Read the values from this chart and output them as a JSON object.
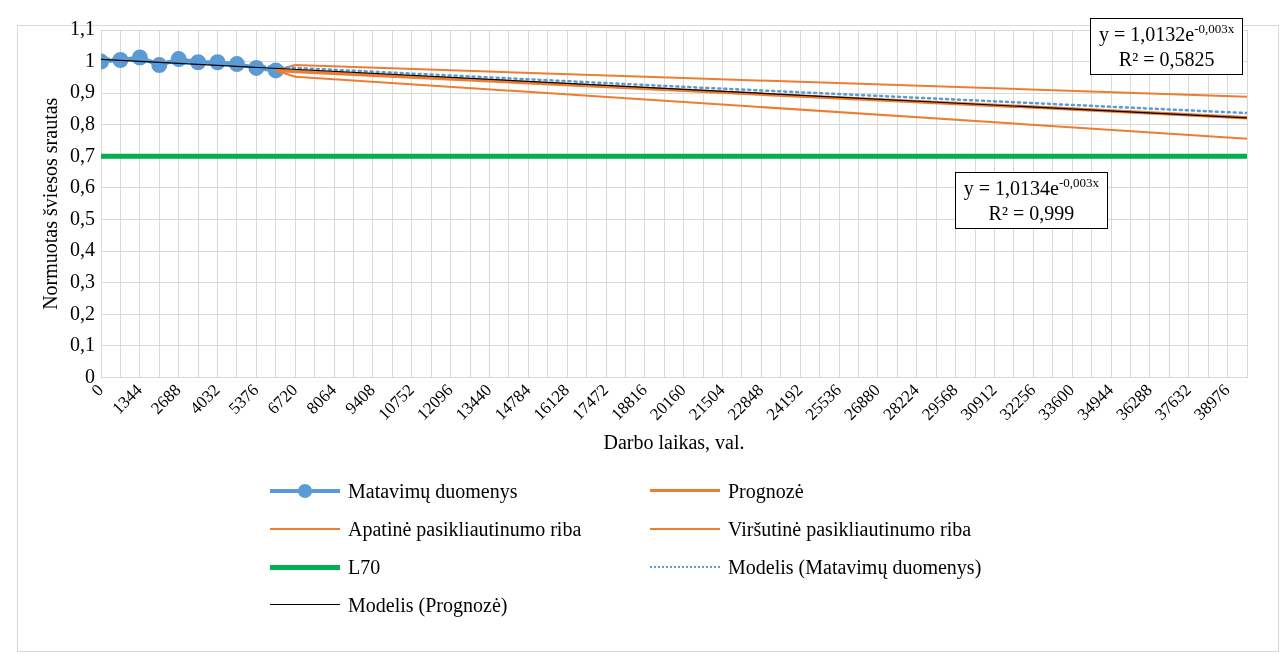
{
  "chart_data": {
    "type": "line",
    "xlabel": "Darbo laikas, val.",
    "ylabel": "Normuotas šviesos srautas",
    "xlim": [
      0,
      39648
    ],
    "xticks": [
      0,
      {
        "value": 672,
        "label": null
      },
      1344,
      {
        "value": 2016,
        "label": null
      },
      2688,
      {
        "value": 3360,
        "label": null
      },
      4032,
      {
        "value": 4704,
        "label": null
      },
      5376,
      {
        "value": 6048,
        "label": null
      },
      6720,
      {
        "value": 7392,
        "label": null
      },
      8064,
      {
        "value": 8736,
        "label": null
      },
      9408,
      {
        "value": 10080,
        "label": null
      },
      10752,
      {
        "value": 11424,
        "label": null
      },
      12096,
      {
        "value": 12768,
        "label": null
      },
      13440,
      {
        "value": 14112,
        "label": null
      },
      14784,
      {
        "value": 15456,
        "label": null
      },
      16128,
      {
        "value": 16800,
        "label": null
      },
      17472,
      {
        "value": 18144,
        "label": null
      },
      18816,
      {
        "value": 19488,
        "label": null
      },
      20160,
      {
        "value": 20832,
        "label": null
      },
      21504,
      {
        "value": 22176,
        "label": null
      },
      22848,
      {
        "value": 23520,
        "label": null
      },
      24192,
      {
        "value": 24864,
        "label": null
      },
      25536,
      {
        "value": 26208,
        "label": null
      },
      26880,
      {
        "value": 27552,
        "label": null
      },
      28224,
      {
        "value": 28896,
        "label": null
      },
      29568,
      {
        "value": 30240,
        "label": null
      },
      30912,
      {
        "value": 31584,
        "label": null
      },
      32256,
      {
        "value": 32928,
        "label": null
      },
      33600,
      {
        "value": 34272,
        "label": null
      },
      34944,
      {
        "value": 35616,
        "label": null
      },
      36288,
      {
        "value": 36960,
        "label": null
      },
      37632,
      {
        "value": 38304,
        "label": null
      },
      38976,
      {
        "value": 39648,
        "label": null
      }
    ],
    "ylim": [
      0,
      1.1
    ],
    "yticks": [
      0,
      {
        "value": 0.1,
        "label": "0,1"
      },
      {
        "value": 0.2,
        "label": "0,2"
      },
      {
        "value": 0.3,
        "label": "0,3"
      },
      {
        "value": 0.4,
        "label": "0,4"
      },
      {
        "value": 0.5,
        "label": "0,5"
      },
      {
        "value": 0.6,
        "label": "0,6"
      },
      {
        "value": 0.7,
        "label": "0,7"
      },
      {
        "value": 0.8,
        "label": "0,8"
      },
      {
        "value": 0.9,
        "label": "0,9"
      },
      1,
      {
        "value": 1.1,
        "label": "1,1"
      }
    ],
    "grid": true,
    "legend": "bottom",
    "series": [
      {
        "name": "Matavimų duomenys",
        "color": "#5b9bd5",
        "marker": "circle",
        "x": [
          0,
          672,
          1344,
          2016,
          2688,
          3360,
          4032,
          4704,
          5376,
          6048
        ],
        "values": [
          1.0,
          1.005,
          1.013,
          0.989,
          1.008,
          0.998,
          0.998,
          0.992,
          0.98,
          0.972
        ]
      },
      {
        "name": "Prognozė",
        "color": "#ed7d31",
        "x": [
          6048,
          13440,
          20160,
          26880,
          33600,
          39648
        ],
        "values": [
          0.972,
          0.939,
          0.909,
          0.879,
          0.85,
          0.822
        ]
      },
      {
        "name": "Apatinė pasikliautinumo riba",
        "color": "#ed7d31",
        "x": [
          6048,
          6720,
          20160,
          39648
        ],
        "values": [
          0.972,
          0.952,
          0.872,
          0.756
        ]
      },
      {
        "name": "Viršutinė pasikliautinumo riba",
        "color": "#ed7d31",
        "x": [
          6048,
          6720,
          20160,
          39648
        ],
        "values": [
          0.972,
          0.989,
          0.948,
          0.889
        ]
      },
      {
        "name": "L70",
        "color": "#00b050",
        "x": [
          0,
          39648
        ],
        "values": [
          0.7,
          0.7
        ]
      },
      {
        "name": "Modelis (Matavimų duomenys)",
        "color": "#5b9bd5",
        "line_style": "dotted",
        "x": [
          0,
          20160,
          39648
        ],
        "values": [
          1.01,
          0.92,
          0.837
        ]
      },
      {
        "name": "Modelis (Prognozė)",
        "color": "#000000",
        "x": [
          0,
          20160,
          39648
        ],
        "values": [
          1.007,
          0.912,
          0.822
        ]
      }
    ],
    "annotations": [
      "y = 1,0132e$^{-0,003x}$\nR² = 0,5825",
      "y = 1,0134e$^{-0,003x}$\nR² = 0,999"
    ]
  }
}
